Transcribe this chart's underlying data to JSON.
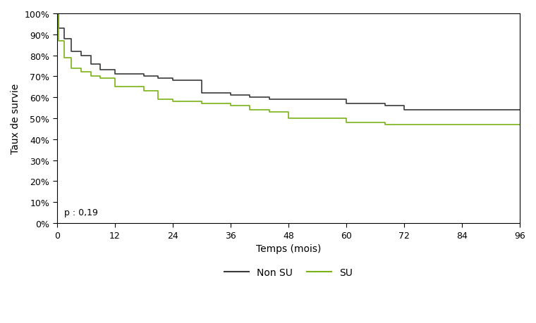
{
  "title": "",
  "xlabel": "Temps (mois)",
  "ylabel": "Taux de survie",
  "annotation": "p : 0,19",
  "xlim": [
    0,
    96
  ],
  "ylim": [
    0.0,
    1.0
  ],
  "xticks": [
    0,
    12,
    24,
    36,
    48,
    60,
    72,
    84,
    96
  ],
  "yticks": [
    0.0,
    0.1,
    0.2,
    0.3,
    0.4,
    0.5,
    0.6,
    0.7,
    0.8,
    0.9,
    1.0
  ],
  "non_su_color": "#3a3a3a",
  "su_color": "#7ab317",
  "legend_labels": [
    "Non SU",
    "SU"
  ],
  "non_su_x": [
    0,
    0.3,
    1.5,
    3,
    5,
    7,
    9,
    12,
    18,
    21,
    24,
    30,
    36,
    40,
    44,
    48,
    58,
    60,
    68,
    72,
    96
  ],
  "non_su_y": [
    1.0,
    0.93,
    0.88,
    0.82,
    0.8,
    0.76,
    0.73,
    0.71,
    0.7,
    0.69,
    0.68,
    0.62,
    0.61,
    0.6,
    0.59,
    0.59,
    0.59,
    0.57,
    0.56,
    0.54,
    0.54
  ],
  "su_x": [
    0,
    0.3,
    1.5,
    3,
    5,
    7,
    9,
    12,
    18,
    21,
    24,
    30,
    36,
    40,
    44,
    48,
    58,
    60,
    68,
    72,
    96
  ],
  "su_y": [
    1.0,
    0.87,
    0.79,
    0.74,
    0.72,
    0.7,
    0.69,
    0.65,
    0.63,
    0.59,
    0.58,
    0.57,
    0.56,
    0.54,
    0.53,
    0.5,
    0.5,
    0.48,
    0.47,
    0.47,
    0.47
  ]
}
